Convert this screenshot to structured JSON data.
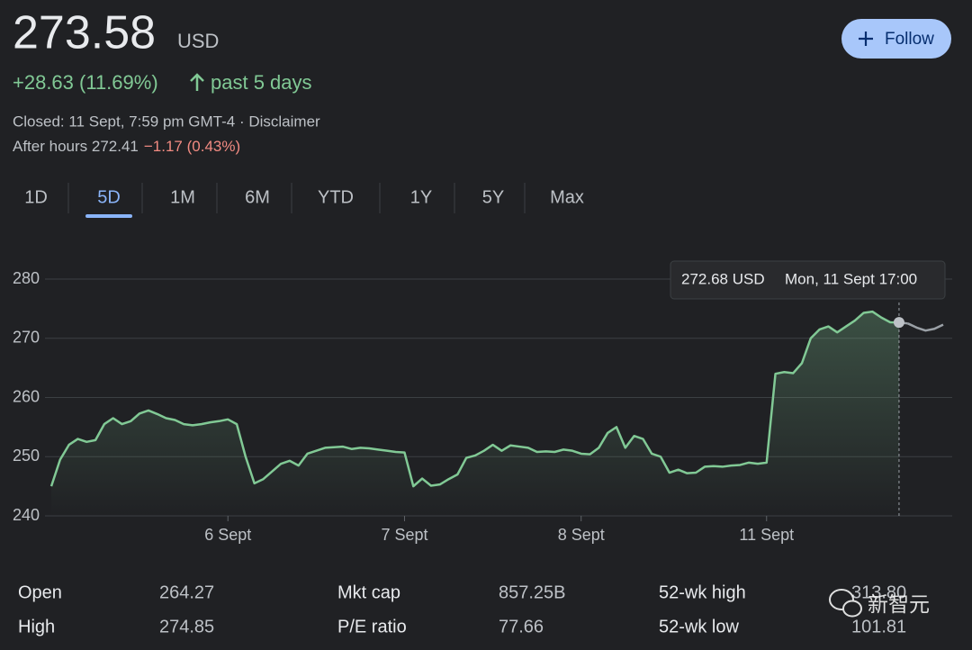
{
  "header": {
    "price": "273.58",
    "currency": "USD",
    "change": "+28.63 (11.69%)",
    "period": "past 5 days",
    "closed": "Closed: 11 Sept, 7:59 pm GMT-4 · Disclaimer",
    "after_hours": "After hours 272.41",
    "after_hours_change": "−1.17 (0.43%)",
    "follow": "Follow"
  },
  "tabs": {
    "items": [
      "1D",
      "5D",
      "1M",
      "6M",
      "YTD",
      "1Y",
      "5Y",
      "Max"
    ],
    "active": 1
  },
  "chart_data": {
    "type": "line",
    "color": "#81c995",
    "after_color": "#9aa0a6",
    "categories": [
      null,
      null,
      null,
      null,
      null,
      null,
      null,
      null,
      null,
      null,
      null,
      null,
      null,
      null,
      null,
      null,
      null,
      null,
      null,
      null,
      "6 Sept",
      null,
      null,
      null,
      null,
      null,
      null,
      null,
      null,
      null,
      null,
      null,
      null,
      null,
      null,
      null,
      null,
      null,
      null,
      null,
      "7 Sept",
      null,
      null,
      null,
      null,
      null,
      null,
      null,
      null,
      null,
      null,
      null,
      null,
      null,
      null,
      null,
      null,
      null,
      null,
      null,
      "8 Sept",
      null,
      null,
      null,
      null,
      null,
      null,
      null,
      null,
      null,
      null,
      null,
      null,
      null,
      null,
      null,
      null,
      null,
      null,
      null,
      null,
      "11 Sept",
      null,
      null,
      null,
      null,
      null,
      null,
      null,
      null,
      null,
      null,
      null,
      null,
      null,
      null,
      null,
      null,
      null,
      null,
      null,
      null
    ],
    "values": [
      245,
      249.5,
      252,
      253,
      252.5,
      252.8,
      255.5,
      256.5,
      255.5,
      256,
      257.3,
      257.8,
      257.2,
      256.5,
      256.2,
      255.5,
      255.3,
      255.5,
      255.8,
      256,
      256.3,
      255.5,
      250,
      245.5,
      246.2,
      247.5,
      248.8,
      249.3,
      248.5,
      250.5,
      251,
      251.5,
      251.6,
      251.7,
      251.3,
      251.5,
      251.4,
      251.2,
      251,
      250.8,
      250.7,
      245,
      246.3,
      245.1,
      245.3,
      246.2,
      247,
      249.8,
      250.2,
      251,
      252,
      251,
      251.9,
      251.7,
      251.5,
      250.8,
      250.9,
      250.8,
      251.2,
      251,
      250.5,
      250.4,
      251.5,
      254,
      255,
      251.5,
      253.5,
      253,
      250.5,
      250,
      247.3,
      247.8,
      247.2,
      247.3,
      248.3,
      248.4,
      248.3,
      248.5,
      248.6,
      249,
      248.8,
      249,
      264,
      264.3,
      264.1,
      265.8,
      270,
      271.5,
      272,
      271,
      272,
      273,
      274.3,
      274.5,
      273.5,
      272.7,
      272.68,
      272.5,
      271.8,
      271.3,
      271.6,
      272.3
    ],
    "ylim": [
      240,
      280
    ],
    "yticks": [
      240,
      250,
      260,
      270,
      280
    ],
    "grid": true,
    "tooltip": {
      "value_label": "272.68 USD",
      "time": "Mon, 11 Sept 17:00",
      "index": 96
    }
  },
  "stats": [
    [
      {
        "label": "Open",
        "value": "264.27"
      },
      {
        "label": "Mkt cap",
        "value": "857.25B"
      },
      {
        "label": "52-wk high",
        "value": "313.80"
      }
    ],
    [
      {
        "label": "High",
        "value": "274.85"
      },
      {
        "label": "P/E ratio",
        "value": "77.66"
      },
      {
        "label": "52-wk low",
        "value": "101.81"
      }
    ]
  ],
  "watermark": "新智元"
}
